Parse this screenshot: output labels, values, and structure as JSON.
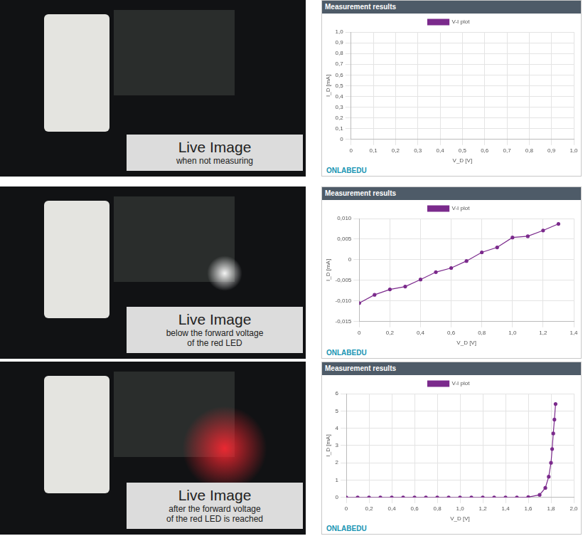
{
  "live_images": [
    {
      "title": "Live Image",
      "caption": [
        "when not measuring"
      ]
    },
    {
      "title": "Live Image",
      "caption": [
        "below the forward voltage",
        "of the red LED"
      ]
    },
    {
      "title": "Live Image",
      "caption": [
        "after the forward voltage",
        "of the red LED is reached"
      ]
    }
  ],
  "chart_data": [
    {
      "type": "line",
      "title": "Measurement results",
      "x_label": "V_D [V]",
      "y_label": "I_D [mA]",
      "annotations": [
        "ONLABEDU"
      ],
      "x": [],
      "series": [
        {
          "name": "V-I plot",
          "color": "#7b2a8c",
          "values": [],
          "marker": "circle",
          "line_style": "solid"
        }
      ],
      "xlim": [
        0,
        1.0
      ],
      "xticks": [
        0,
        {
          "value": 0.1,
          "label": "0,1"
        },
        {
          "value": 0.2,
          "label": "0,2"
        },
        {
          "value": 0.3,
          "label": "0,3"
        },
        {
          "value": 0.4,
          "label": "0,4"
        },
        {
          "value": 0.5,
          "label": "0,5"
        },
        {
          "value": 0.6,
          "label": "0,6"
        },
        {
          "value": 0.7,
          "label": "0,7"
        },
        {
          "value": 0.8,
          "label": "0,8"
        },
        {
          "value": 0.9,
          "label": "0,9"
        },
        {
          "value": 1.0,
          "label": "1,0"
        }
      ],
      "ylim": [
        0,
        1.0
      ],
      "yticks": [
        0,
        {
          "value": 0.1,
          "label": "0,1"
        },
        {
          "value": 0.2,
          "label": "0,2"
        },
        {
          "value": 0.3,
          "label": "0,3"
        },
        {
          "value": 0.4,
          "label": "0,4"
        },
        {
          "value": 0.5,
          "label": "0,5"
        },
        {
          "value": 0.6,
          "label": "0,6"
        },
        {
          "value": 0.7,
          "label": "0,7"
        },
        {
          "value": 0.8,
          "label": "0,8"
        },
        {
          "value": 0.9,
          "label": "0,9"
        },
        {
          "value": 1.0,
          "label": "1,0"
        }
      ],
      "grid": true,
      "legend": "top"
    },
    {
      "type": "line",
      "title": "Measurement results",
      "x_label": "V_D [V]",
      "y_label": "I_D [mA]",
      "annotations": [
        "ONLABEDU"
      ],
      "x": [
        0,
        0.1,
        0.2,
        0.3,
        0.4,
        0.5,
        0.6,
        0.7,
        0.8,
        0.9,
        1.0,
        1.1,
        1.2,
        1.3
      ],
      "series": [
        {
          "name": "V-I plot",
          "color": "#7b2a8c",
          "values": [
            -0.0105,
            -0.0085,
            -0.0072,
            -0.0065,
            -0.0048,
            -0.003,
            -0.002,
            -0.0003,
            0.0018,
            0.003,
            0.0054,
            0.0057,
            0.0071,
            0.0087
          ],
          "marker": "circle",
          "line_style": "solid"
        }
      ],
      "xlim": [
        0,
        1.4
      ],
      "xticks": [
        0,
        {
          "value": 0.2,
          "label": "0,2"
        },
        {
          "value": 0.4,
          "label": "0,4"
        },
        {
          "value": 0.6,
          "label": "0,6"
        },
        {
          "value": 0.8,
          "label": "0,8"
        },
        {
          "value": 1.0,
          "label": "1,0"
        },
        {
          "value": 1.2,
          "label": "1,2"
        },
        {
          "value": 1.4,
          "label": "1,4"
        }
      ],
      "ylim": [
        -0.015,
        0.01
      ],
      "yticks": [
        {
          "value": -0.015,
          "label": "-0,015"
        },
        {
          "value": -0.01,
          "label": "-0,010"
        },
        {
          "value": -0.005,
          "label": "-0,005"
        },
        0,
        {
          "value": 0.005,
          "label": "0,005"
        },
        {
          "value": 0.01,
          "label": "0,010"
        }
      ],
      "grid": true,
      "legend": "top"
    },
    {
      "type": "line",
      "title": "Measurement results",
      "x_label": "V_D [V]",
      "y_label": "I_D [mA]",
      "annotations": [
        "ONLABEDU"
      ],
      "x": [
        0,
        0.1,
        0.2,
        0.3,
        0.4,
        0.5,
        0.6,
        0.7,
        0.8,
        0.9,
        1.0,
        1.1,
        1.2,
        1.3,
        1.4,
        1.5,
        1.6,
        1.7,
        1.75,
        1.78,
        1.8,
        1.81,
        1.82,
        1.83,
        1.84
      ],
      "series": [
        {
          "name": "V-I plot",
          "color": "#7b2a8c",
          "values": [
            0,
            0,
            0,
            0,
            0,
            0,
            0,
            0,
            0,
            0,
            0,
            0,
            0,
            0,
            0,
            0,
            0.02,
            0.15,
            0.55,
            1.2,
            2.0,
            2.8,
            3.7,
            4.5,
            5.4
          ],
          "marker": "circle",
          "line_style": "solid"
        }
      ],
      "xlim": [
        0,
        2.0
      ],
      "xticks": [
        0,
        {
          "value": 0.2,
          "label": "0,2"
        },
        {
          "value": 0.4,
          "label": "0,4"
        },
        {
          "value": 0.6,
          "label": "0,6"
        },
        {
          "value": 0.8,
          "label": "0,8"
        },
        {
          "value": 1.0,
          "label": "1,0"
        },
        {
          "value": 1.2,
          "label": "1,2"
        },
        {
          "value": 1.4,
          "label": "1,4"
        },
        {
          "value": 1.6,
          "label": "1,6"
        },
        {
          "value": 1.8,
          "label": "1,8"
        },
        {
          "value": 2.0,
          "label": "2,0"
        }
      ],
      "ylim": [
        0,
        6
      ],
      "yticks": [
        0,
        1,
        2,
        3,
        4,
        5,
        6
      ],
      "grid": true,
      "legend": "top"
    }
  ]
}
